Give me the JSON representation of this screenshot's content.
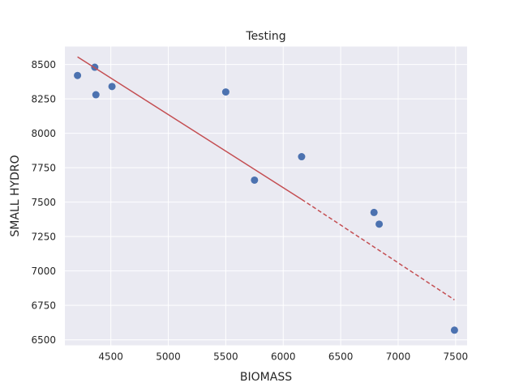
{
  "chart_data": {
    "type": "scatter",
    "title": "Testing",
    "xlabel": "BIOMASS",
    "ylabel": "SMALL HYDRO",
    "xlim": [
      4100,
      7600
    ],
    "ylim": [
      6460,
      8630
    ],
    "x_ticks": [
      4500,
      5000,
      5500,
      6000,
      6500,
      7000,
      7500
    ],
    "y_ticks": [
      6500,
      6750,
      7000,
      7250,
      7500,
      7750,
      8000,
      8250,
      8500
    ],
    "grid": true,
    "background": "#eaeaf2",
    "series": [
      {
        "kind": "points",
        "color": "#4c72b0",
        "points": [
          {
            "x": 4210,
            "y": 8420
          },
          {
            "x": 4360,
            "y": 8480
          },
          {
            "x": 4370,
            "y": 8280
          },
          {
            "x": 4510,
            "y": 8340
          },
          {
            "x": 5500,
            "y": 8300
          },
          {
            "x": 5750,
            "y": 7660
          },
          {
            "x": 6160,
            "y": 7830
          },
          {
            "x": 6790,
            "y": 7425
          },
          {
            "x": 6835,
            "y": 7340
          },
          {
            "x": 7490,
            "y": 6570
          }
        ]
      },
      {
        "kind": "fit-solid",
        "color": "#c44e52",
        "points": [
          {
            "x": 4210,
            "y": 8555
          },
          {
            "x": 6160,
            "y": 7520
          }
        ]
      },
      {
        "kind": "fit-dashed",
        "color": "#c44e52",
        "points": [
          {
            "x": 6160,
            "y": 7520
          },
          {
            "x": 7490,
            "y": 6790
          }
        ]
      }
    ]
  }
}
